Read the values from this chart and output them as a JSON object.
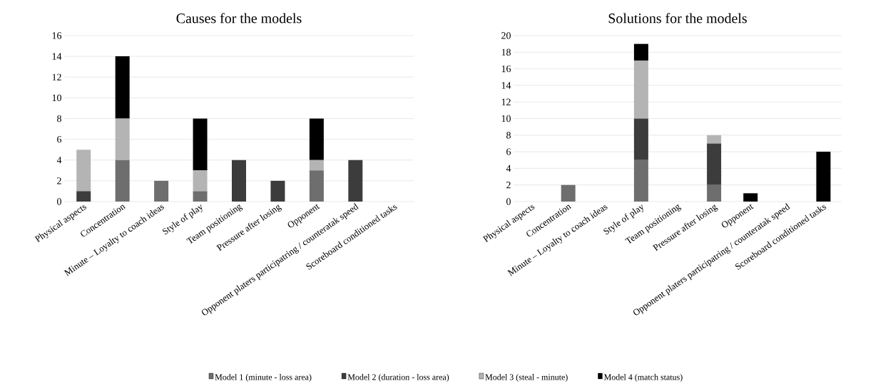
{
  "chart_data": [
    {
      "type": "bar",
      "stacked": true,
      "title": "Causes for the models",
      "categories": [
        "Physical aspects",
        "Concentration",
        "Minute – Loyalty to coach ideas",
        "Style of play",
        "Team positioning",
        "Pressure after losing",
        "Opponent",
        "Opponent platers participatring / counteratak speed",
        "Scoreboard conditioned tasks"
      ],
      "series": [
        {
          "color": "#6e6e6e",
          "values": [
            0,
            4,
            2,
            1,
            0,
            0,
            3,
            0,
            0
          ]
        },
        {
          "color": "#3c3c3c",
          "values": [
            1,
            0,
            0,
            0,
            4,
            2,
            0,
            4,
            0
          ]
        },
        {
          "color": "#b4b4b4",
          "values": [
            4,
            4,
            0,
            2,
            0,
            0,
            1,
            0,
            0
          ]
        },
        {
          "color": "#000000",
          "values": [
            0,
            6,
            0,
            5,
            0,
            0,
            4,
            0,
            0
          ]
        }
      ],
      "ylim": [
        0,
        16
      ],
      "yticks": [
        0,
        2,
        4,
        6,
        8,
        10,
        12,
        14,
        16
      ],
      "grid": "y"
    },
    {
      "type": "bar",
      "stacked": true,
      "title": "Solutions for the models",
      "categories": [
        "Physical aspects",
        "Concentration",
        "Minute – Loyalty to coach ideas",
        "Style of play",
        "Team positioning",
        "Pressure after losing",
        "Opponent",
        "Opponent platers participatring / counteratak speed",
        "Scoreboard conditioned tasks"
      ],
      "series": [
        {
          "name": "Model 1 (minute - loss area)",
          "color": "#6e6e6e",
          "values": [
            0,
            2,
            0,
            5,
            0,
            2,
            0,
            0,
            0
          ]
        },
        {
          "name": "Model 2 (duration - loss area)",
          "color": "#3c3c3c",
          "values": [
            0,
            0,
            0,
            5,
            0,
            5,
            0,
            0,
            0
          ]
        },
        {
          "name": "Model 3 (steal - minute)",
          "color": "#b4b4b4",
          "values": [
            0,
            0,
            0,
            7,
            0,
            1,
            0,
            0,
            0
          ]
        },
        {
          "name": "Model 4 (match status)",
          "color": "#000000",
          "values": [
            0,
            0,
            0,
            2,
            0,
            0,
            1,
            0,
            6
          ]
        }
      ],
      "ylim": [
        0,
        20
      ],
      "yticks": [
        0,
        2,
        4,
        6,
        8,
        10,
        12,
        14,
        16,
        18,
        20
      ],
      "grid": "y",
      "legend": "bottom"
    }
  ]
}
